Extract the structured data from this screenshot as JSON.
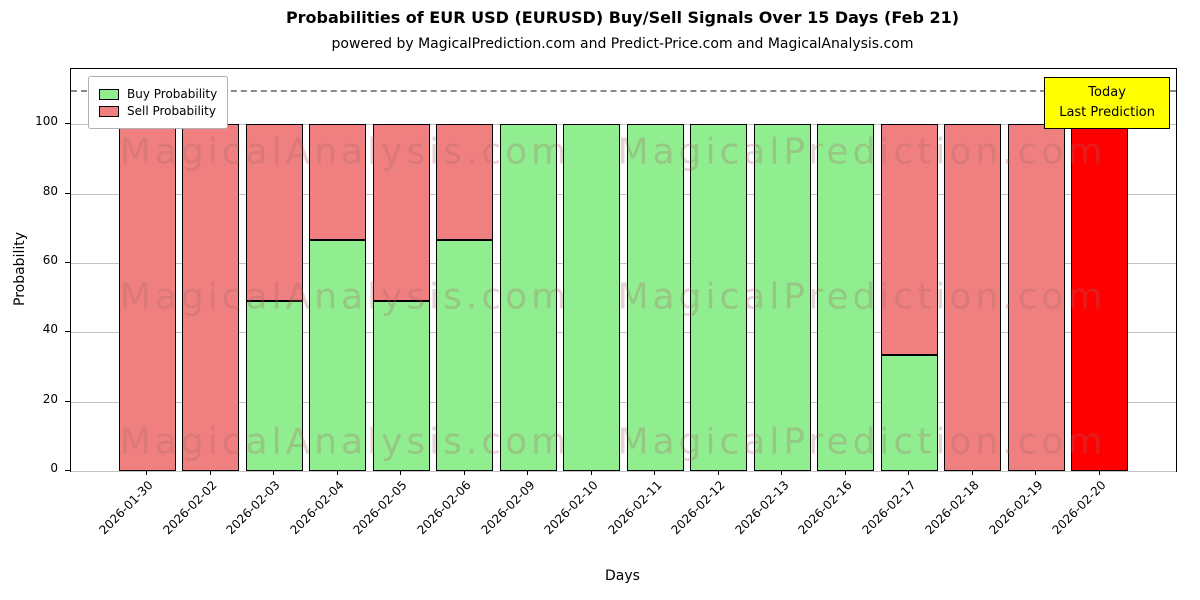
{
  "chart_data": {
    "type": "bar",
    "stacked": true,
    "title": "Probabilities of EUR USD (EURUSD) Buy/Sell Signals Over 15 Days (Feb 21)",
    "subtitle": "powered by MagicalPrediction.com and Predict-Price.com and MagicalAnalysis.com",
    "xlabel": "Days",
    "ylabel": "Probability",
    "categories": [
      "2026-01-30",
      "2026-02-02",
      "2026-02-03",
      "2026-02-04",
      "2026-02-05",
      "2026-02-06",
      "2026-02-09",
      "2026-02-10",
      "2026-02-11",
      "2026-02-12",
      "2026-02-13",
      "2026-02-16",
      "2026-02-17",
      "2026-02-18",
      "2026-02-19",
      "2026-02-20"
    ],
    "series": [
      {
        "name": "Buy Probability",
        "color": "#90EE90",
        "values": [
          0,
          0,
          49,
          66.67,
          49,
          66.67,
          100,
          100,
          100,
          100,
          100,
          100,
          33.33,
          0,
          0,
          0
        ]
      },
      {
        "name": "Sell Probability",
        "color": "#F08080",
        "values": [
          100,
          100,
          51,
          33.33,
          51,
          33.33,
          0,
          0,
          0,
          0,
          0,
          0,
          66.67,
          100,
          100,
          100
        ]
      }
    ],
    "last_bar_color": "#FF0000",
    "yticks": [
      0,
      20,
      40,
      60,
      80,
      100
    ],
    "ylim": [
      0,
      116
    ],
    "dashed_line_y": 110,
    "grid": true,
    "legend_position": "upper left"
  },
  "annotation": {
    "line1": "Today",
    "line2": "Last Prediction",
    "bg": "#FFFF00"
  },
  "watermarks": {
    "texts": [
      "MagicalAnalysis.com",
      "MagicalPrediction.com"
    ]
  }
}
